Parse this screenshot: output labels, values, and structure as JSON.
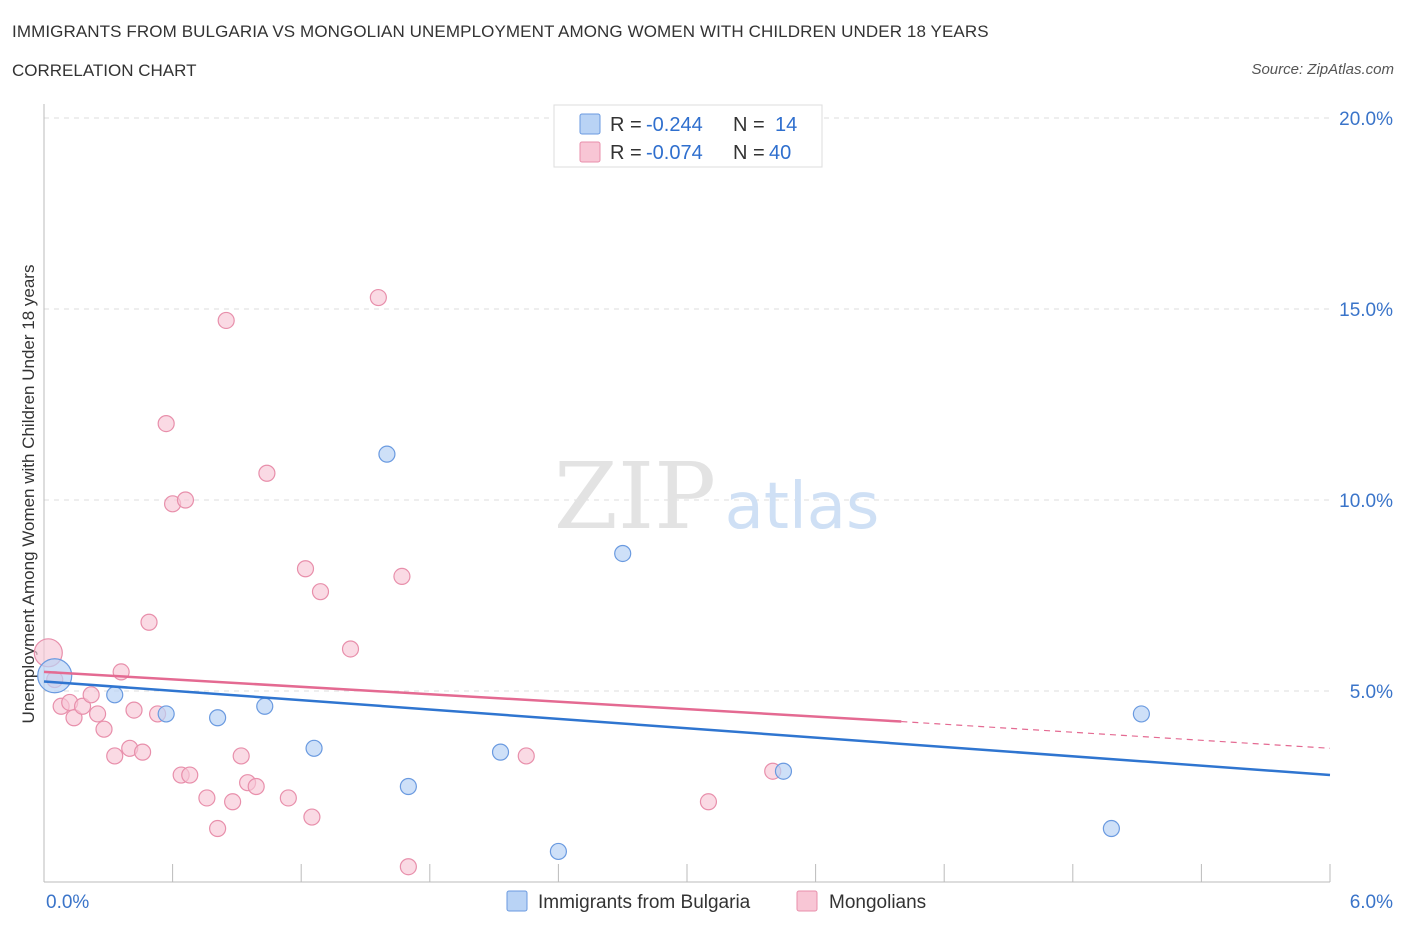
{
  "header": {
    "title": "IMMIGRANTS FROM BULGARIA VS MONGOLIAN UNEMPLOYMENT AMONG WOMEN WITH CHILDREN UNDER 18 YEARS",
    "subtitle": "CORRELATION CHART",
    "source": "Source: ZipAtlas.com"
  },
  "watermark": {
    "zip": "ZIP",
    "atlas": "atlas"
  },
  "legend_box": {
    "rows": [
      {
        "r_label": "R =",
        "r_value": "-0.244",
        "n_label": "N =",
        "n_value": "14"
      },
      {
        "r_label": "R =",
        "r_value": "-0.074",
        "n_label": "N =",
        "n_value": "40"
      }
    ]
  },
  "colors": {
    "bulgaria_fill": "#b9d3f5",
    "bulgaria_stroke": "#6a9ae0",
    "bulgaria_line": "#2f75d0",
    "mongolian_fill": "#f8c6d5",
    "mongolian_stroke": "#e88fab",
    "mongolian_line": "#e46a92",
    "tick_label": "#3a74c9",
    "grid": "#dddddd"
  },
  "chart_data": {
    "type": "scatter",
    "title": "IMMIGRANTS FROM BULGARIA VS MONGOLIAN UNEMPLOYMENT AMONG WOMEN WITH CHILDREN UNDER 18 YEARS",
    "xlabel": "",
    "ylabel": "Unemployment Among Women with Children Under 18 years",
    "xlim": [
      0,
      6
    ],
    "ylim": [
      0,
      20
    ],
    "x_tick_labels": [
      "0.0%",
      "6.0%"
    ],
    "y_ticks": [
      5,
      10,
      15,
      20
    ],
    "y_tick_labels": [
      "5.0%",
      "10.0%",
      "15.0%",
      "20.0%"
    ],
    "grid": true,
    "legend_position": "bottom",
    "series": [
      {
        "name": "Immigrants from Bulgaria",
        "points": [
          [
            0.05,
            5.4
          ],
          [
            0.33,
            4.9
          ],
          [
            0.57,
            4.4
          ],
          [
            0.81,
            4.3
          ],
          [
            1.03,
            4.6
          ],
          [
            1.26,
            3.5
          ],
          [
            1.6,
            11.2
          ],
          [
            1.7,
            2.5
          ],
          [
            2.13,
            3.4
          ],
          [
            2.4,
            0.8
          ],
          [
            2.7,
            8.6
          ],
          [
            3.45,
            2.9
          ],
          [
            4.98,
            1.4
          ],
          [
            5.12,
            4.4
          ]
        ],
        "trend": {
          "x": [
            0.0,
            6.0
          ],
          "y": [
            5.25,
            2.8
          ]
        }
      },
      {
        "name": "Mongolians",
        "points": [
          [
            0.02,
            6.0
          ],
          [
            0.05,
            5.3
          ],
          [
            0.08,
            4.6
          ],
          [
            0.12,
            4.7
          ],
          [
            0.14,
            4.3
          ],
          [
            0.18,
            4.6
          ],
          [
            0.22,
            4.9
          ],
          [
            0.25,
            4.4
          ],
          [
            0.28,
            4.0
          ],
          [
            0.33,
            3.3
          ],
          [
            0.36,
            5.5
          ],
          [
            0.4,
            3.5
          ],
          [
            0.42,
            4.5
          ],
          [
            0.46,
            3.4
          ],
          [
            0.49,
            6.8
          ],
          [
            0.53,
            4.4
          ],
          [
            0.57,
            12.0
          ],
          [
            0.6,
            9.9
          ],
          [
            0.64,
            2.8
          ],
          [
            0.66,
            10.0
          ],
          [
            0.68,
            2.8
          ],
          [
            0.76,
            2.2
          ],
          [
            0.81,
            1.4
          ],
          [
            0.85,
            14.7
          ],
          [
            0.88,
            2.1
          ],
          [
            0.92,
            3.3
          ],
          [
            0.95,
            2.6
          ],
          [
            0.99,
            2.5
          ],
          [
            1.04,
            10.7
          ],
          [
            1.14,
            2.2
          ],
          [
            1.22,
            8.2
          ],
          [
            1.25,
            1.7
          ],
          [
            1.29,
            7.6
          ],
          [
            1.43,
            6.1
          ],
          [
            1.56,
            15.3
          ],
          [
            1.67,
            8.0
          ],
          [
            1.7,
            0.4
          ],
          [
            2.25,
            3.3
          ],
          [
            3.1,
            2.1
          ],
          [
            3.4,
            2.9
          ]
        ],
        "trend": {
          "x": [
            0.0,
            4.0
          ],
          "y": [
            5.5,
            4.2
          ]
        },
        "trend_extension": {
          "x": [
            4.0,
            6.0
          ],
          "y": [
            4.2,
            3.5
          ]
        }
      }
    ]
  }
}
